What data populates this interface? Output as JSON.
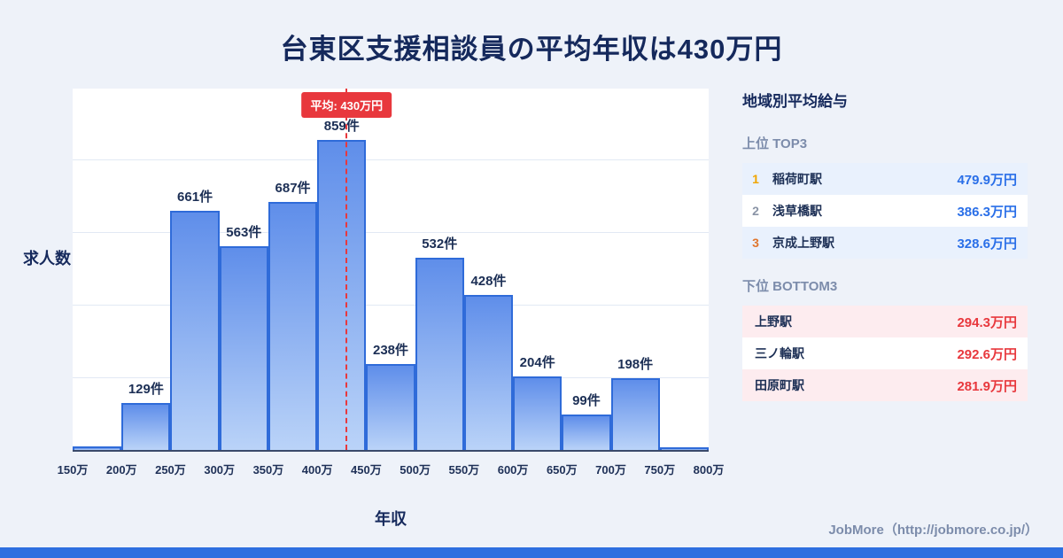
{
  "page": {
    "title": "台東区支援相談員の平均年収は430万円",
    "footer": "JobMore（http://jobmore.co.jp/）"
  },
  "chart_data": {
    "type": "bar",
    "title": "台東区支援相談員の平均年収は430万円",
    "xlabel": "年収",
    "ylabel": "求人数",
    "x_ticks": [
      "150万",
      "200万",
      "250万",
      "300万",
      "350万",
      "400万",
      "450万",
      "500万",
      "550万",
      "600万",
      "650万",
      "700万",
      "750万",
      "800万"
    ],
    "values": [
      10,
      129,
      661,
      563,
      687,
      859,
      238,
      532,
      428,
      204,
      99,
      198,
      8
    ],
    "bar_labels": [
      "",
      "129件",
      "661件",
      "563件",
      "687件",
      "859件",
      "238件",
      "532件",
      "428件",
      "204件",
      "99件",
      "198件",
      ""
    ],
    "ylim": [
      0,
      1000
    ],
    "x_range_man": [
      150,
      800
    ],
    "grid": true,
    "legend": "none",
    "average": {
      "value": 430,
      "label": "平均: 430万円"
    }
  },
  "sidebar": {
    "title": "地域別平均給与",
    "top": {
      "heading": "上位 TOP3",
      "rows": [
        {
          "rank": "1",
          "station": "稲荷町駅",
          "value": "479.9万円"
        },
        {
          "rank": "2",
          "station": "浅草橋駅",
          "value": "386.3万円"
        },
        {
          "rank": "3",
          "station": "京成上野駅",
          "value": "328.6万円"
        }
      ]
    },
    "bottom": {
      "heading": "下位 BOTTOM3",
      "rows": [
        {
          "station": "上野駅",
          "value": "294.3万円"
        },
        {
          "station": "三ノ輪駅",
          "value": "292.6万円"
        },
        {
          "station": "田原町駅",
          "value": "281.9万円"
        }
      ]
    }
  },
  "colors": {
    "background": "#eef2f9",
    "title_navy": "#15295c",
    "bar_border": "#2f6bd9",
    "bar_fill_top": "#5f8eea",
    "bar_fill_bottom": "#bad3f8",
    "average_red": "#e8383d",
    "value_blue": "#2a6fe8",
    "value_red": "#e8383d",
    "rank1_gold": "#f0a500",
    "rank2_gray": "#8a94a6",
    "rank3_bronze": "#e0762e",
    "footer_bar_blue": "#2e6fe0"
  }
}
